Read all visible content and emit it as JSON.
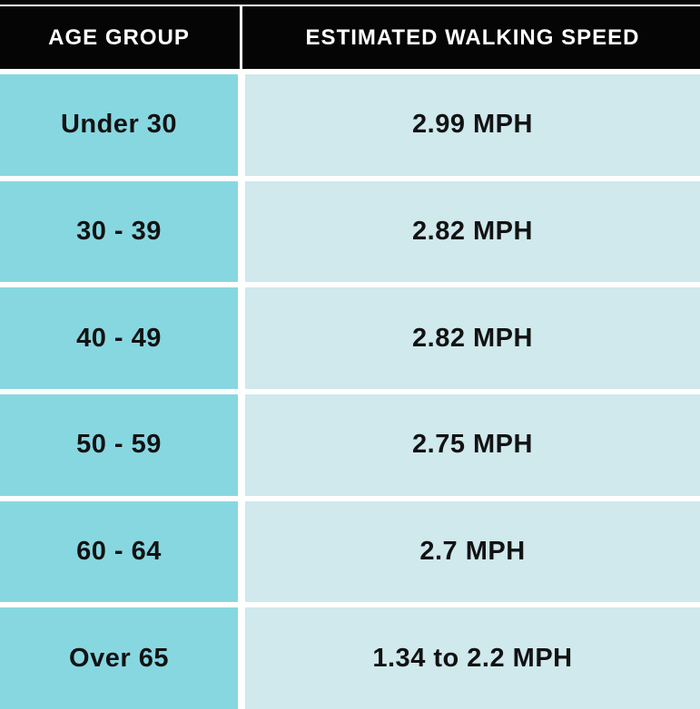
{
  "table": {
    "columns": [
      {
        "label": "AGE GROUP"
      },
      {
        "label": "ESTIMATED WALKING SPEED"
      }
    ],
    "rows": [
      {
        "age_group": "Under 30",
        "speed": "2.99 MPH"
      },
      {
        "age_group": "30 - 39",
        "speed": "2.82 MPH"
      },
      {
        "age_group": "40 - 49",
        "speed": "2.82 MPH"
      },
      {
        "age_group": "50 - 59",
        "speed": "2.75 MPH"
      },
      {
        "age_group": "60 - 64",
        "speed": "2.7 MPH"
      },
      {
        "age_group": "Over 65",
        "speed": "1.34 to 2.2 MPH"
      }
    ],
    "colors": {
      "header_bg": "#050505",
      "header_text": "#ffffff",
      "age_cell_bg": "#87d7e1",
      "speed_cell_bg": "#cfe9ed",
      "body_text": "#121212",
      "grid_gap": "#ffffff"
    }
  }
}
